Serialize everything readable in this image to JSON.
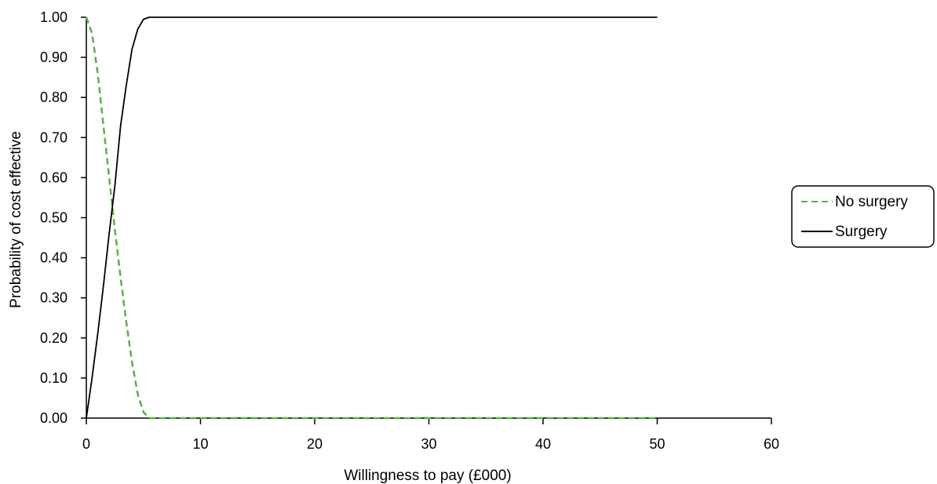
{
  "chart_data": {
    "type": "line",
    "title": "",
    "xlabel": "Willingness to pay (£000)",
    "ylabel": "Probability of cost effective",
    "xlim": [
      0,
      60
    ],
    "ylim": [
      0,
      1
    ],
    "x_ticks": [
      0,
      10,
      20,
      30,
      40,
      50,
      60
    ],
    "x_tick_labels": [
      "0",
      "10",
      "20",
      "30",
      "40",
      "50",
      "60"
    ],
    "y_ticks": [
      0,
      0.1,
      0.2,
      0.3,
      0.4,
      0.5,
      0.6,
      0.7,
      0.8,
      0.9,
      1.0
    ],
    "y_tick_labels": [
      "0.00",
      "0.10",
      "0.20",
      "0.30",
      "0.40",
      "0.50",
      "0.60",
      "0.70",
      "0.80",
      "0.90",
      "1.00"
    ],
    "grid": false,
    "legend_position": "right",
    "series": [
      {
        "name": "No surgery",
        "color": "#5bb04a",
        "style": "dashed",
        "x": [
          0,
          0.5,
          1,
          1.5,
          2,
          2.5,
          3,
          3.5,
          4,
          4.5,
          5,
          5.5,
          6,
          7,
          8,
          10,
          20,
          30,
          40,
          50
        ],
        "y": [
          1.0,
          0.96,
          0.86,
          0.73,
          0.6,
          0.47,
          0.35,
          0.24,
          0.14,
          0.06,
          0.015,
          0.0,
          0.0,
          0.0,
          0.0,
          0.0,
          0.0,
          0.0,
          0.0,
          0.0
        ]
      },
      {
        "name": "Surgery",
        "color": "#000000",
        "style": "solid",
        "x": [
          0,
          0.5,
          1,
          1.5,
          2,
          2.5,
          3,
          3.5,
          4,
          4.5,
          5,
          5.5,
          6,
          7,
          8,
          10,
          20,
          30,
          40,
          50
        ],
        "y": [
          0.0,
          0.1,
          0.21,
          0.33,
          0.46,
          0.58,
          0.73,
          0.83,
          0.92,
          0.97,
          0.995,
          1.0,
          1.0,
          1.0,
          1.0,
          1.0,
          1.0,
          1.0,
          1.0,
          1.0
        ]
      }
    ]
  }
}
